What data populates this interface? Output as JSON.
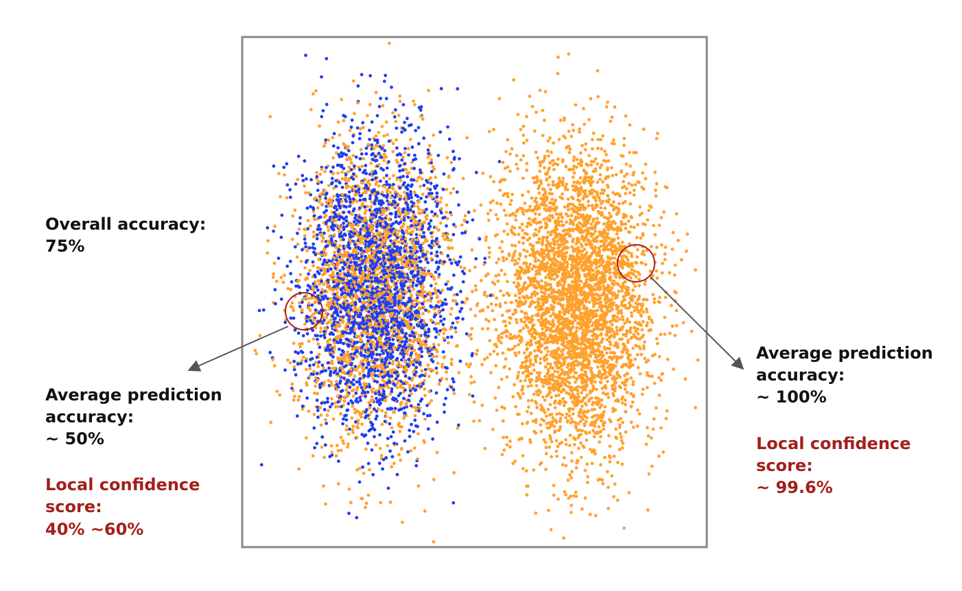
{
  "colors": {
    "blue": "#1f3ff0",
    "orange": "#ffa12e",
    "annotation_red": "#a31f1a",
    "arrow": "#555555",
    "frame": "#888888",
    "text": "#111111"
  },
  "overall": {
    "line1": "Overall accuracy:",
    "line2": "75%"
  },
  "left_note": {
    "line1": "Average prediction",
    "line2": "accuracy:",
    "line3": "~ 50%",
    "conf1": "Local confidence",
    "conf2": "score:",
    "conf3": "40% ~60%"
  },
  "right_note": {
    "line1": "Average prediction",
    "line2": "accuracy:",
    "line3": "~ 100%",
    "conf1": "Local confidence",
    "conf2": "score:",
    "conf3": "~ 99.6%"
  },
  "chart_data": {
    "type": "scatter",
    "series": [
      {
        "color": "#ffa12e",
        "clusters": [
          "left",
          "right"
        ]
      },
      {
        "color": "#1f3ff0",
        "clusters": [
          "left"
        ]
      }
    ],
    "grid": false,
    "axes": false,
    "markers": [
      "left-cluster-edge circle",
      "right-cluster-edge circle"
    ]
  }
}
